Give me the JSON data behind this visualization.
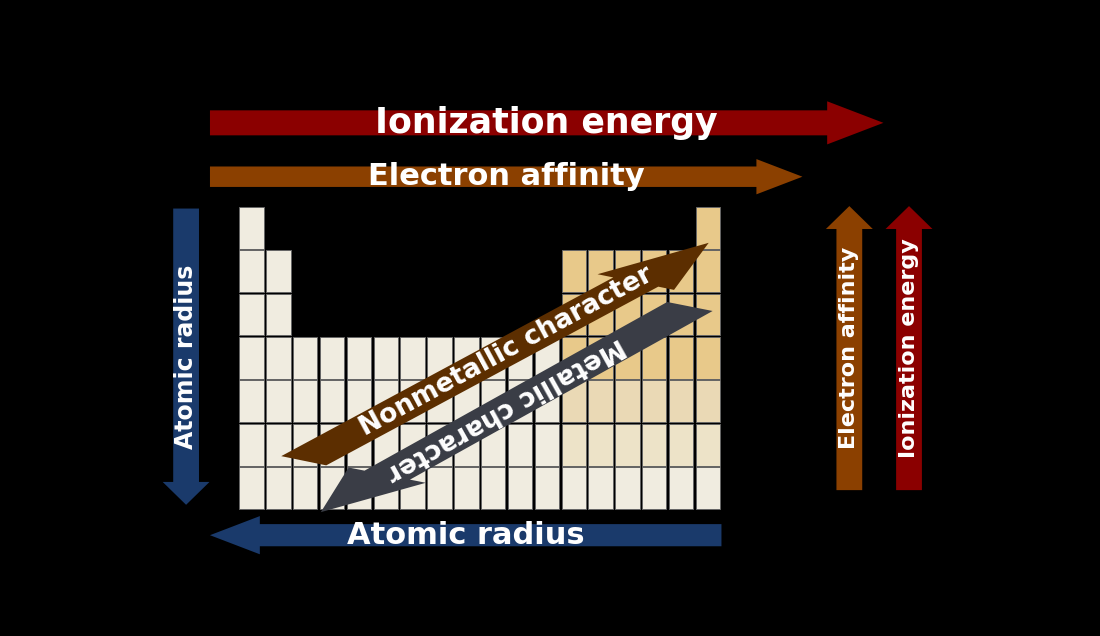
{
  "bg_color": "#000000",
  "pt_color_white": "#f0ece0",
  "pt_color_tan": "#e8c98a",
  "pt_border_color": "#666666",
  "ionization_color": "#8b0000",
  "electron_affinity_color": "#8b4000",
  "atomic_radius_color": "#1a3a6b",
  "nonmetallic_color": "#5c2e00",
  "metallic_color": "#3a3d46",
  "text_color": "#ffffff",
  "arrow_ionization_label": "Ionization energy",
  "arrow_electron_affinity_label": "Electron affinity",
  "arrow_atomic_radius_label": "Atomic radius",
  "arrow_nonmetallic_label": "Nonmetallic character",
  "arrow_metallic_label": "Metallic character"
}
